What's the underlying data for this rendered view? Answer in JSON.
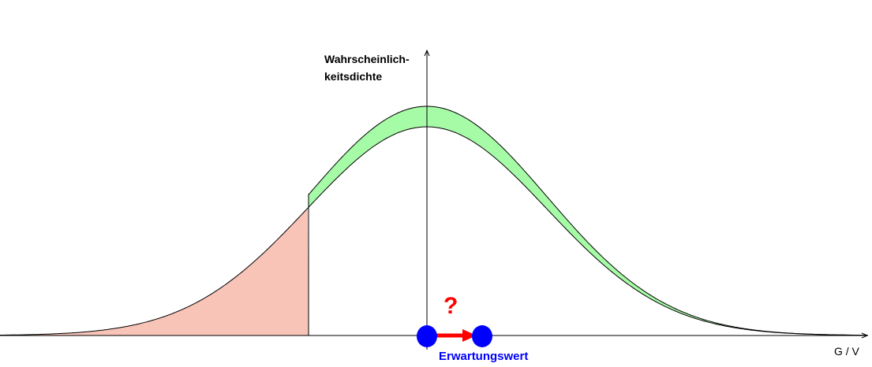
{
  "y_axis_label_line1": "Wahrscheinlich-",
  "y_axis_label_line2": "keitsdichte",
  "x_axis_label": "G / V",
  "question_mark": "?",
  "expected_value_label": "Erwartungswert",
  "colors": {
    "shaded_left_tail": "#f8c4b8",
    "shift_band": "#a6fba6",
    "expected_value_points": "#0000ff",
    "shift_arrow": "#ff0000",
    "question_mark": "#ff0000",
    "expected_value_label": "#0000ff"
  }
}
